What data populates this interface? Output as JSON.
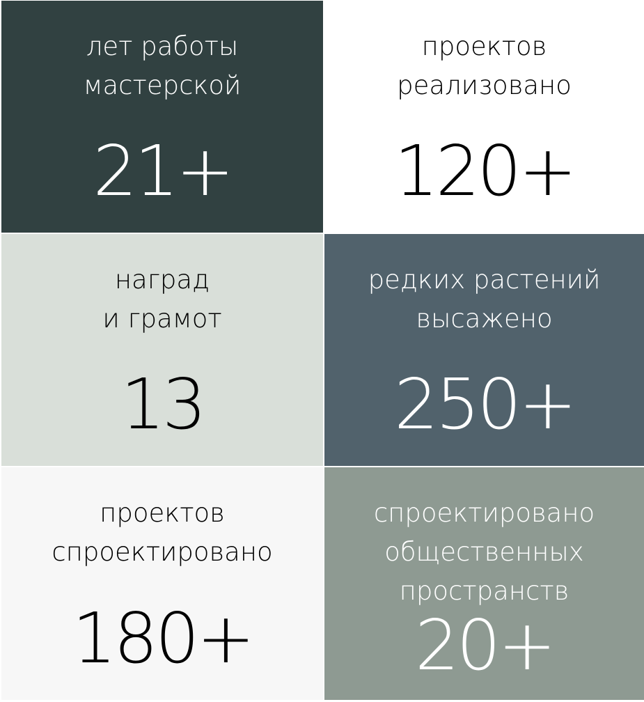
{
  "stats": [
    {
      "label_lines": [
        "лет работы",
        "мастерской"
      ],
      "value": "21+",
      "bg": "#314141",
      "fg": "#ffffff"
    },
    {
      "label_lines": [
        "проектов",
        "реализовано"
      ],
      "value": "120+",
      "bg": "#ffffff",
      "fg": "#000000"
    },
    {
      "label_lines": [
        "наград",
        "и грамот"
      ],
      "value": "13",
      "bg": "#d9dfd9",
      "fg": "#000000"
    },
    {
      "label_lines": [
        "редких растений",
        "высажено"
      ],
      "value": "250+",
      "bg": "#51626c",
      "fg": "#ffffff"
    },
    {
      "label_lines": [
        "проектов",
        "спроектировано"
      ],
      "value": "180+",
      "bg": "#f7f7f7",
      "fg": "#000000"
    },
    {
      "label_lines": [
        "спроектировано",
        "общественных",
        "пространств"
      ],
      "value": "20+",
      "bg": "#8e9a92",
      "fg": "#ffffff"
    }
  ]
}
